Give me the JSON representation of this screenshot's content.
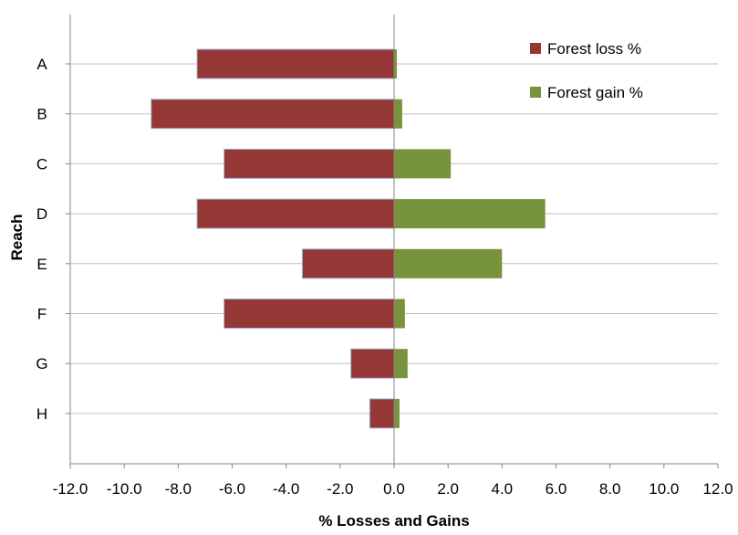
{
  "chart_data": {
    "type": "bar",
    "orientation": "horizontal",
    "stacking": "diverging",
    "categories": [
      "A",
      "B",
      "C",
      "D",
      "E",
      "F",
      "G",
      "H"
    ],
    "series": [
      {
        "name": "Forest loss %",
        "color": "#953735",
        "values": [
          -7.3,
          -9.0,
          -6.3,
          -7.3,
          -3.4,
          -6.3,
          -1.6,
          -0.9
        ]
      },
      {
        "name": "Forest gain %",
        "color": "#77933c",
        "values": [
          0.1,
          0.3,
          2.1,
          5.6,
          4.0,
          0.4,
          0.5,
          0.2
        ]
      }
    ],
    "xlabel": "% Losses and Gains",
    "ylabel": "Reach",
    "xlim": [
      -12.0,
      12.0
    ],
    "xticks": [
      "-12.0",
      "-10.0",
      "-8.0",
      "-6.0",
      "-4.0",
      "-2.0",
      "0.0",
      "2.0",
      "4.0",
      "6.0",
      "8.0",
      "10.0",
      "12.0"
    ],
    "grid": "horizontal",
    "legend_position": "top-right"
  }
}
